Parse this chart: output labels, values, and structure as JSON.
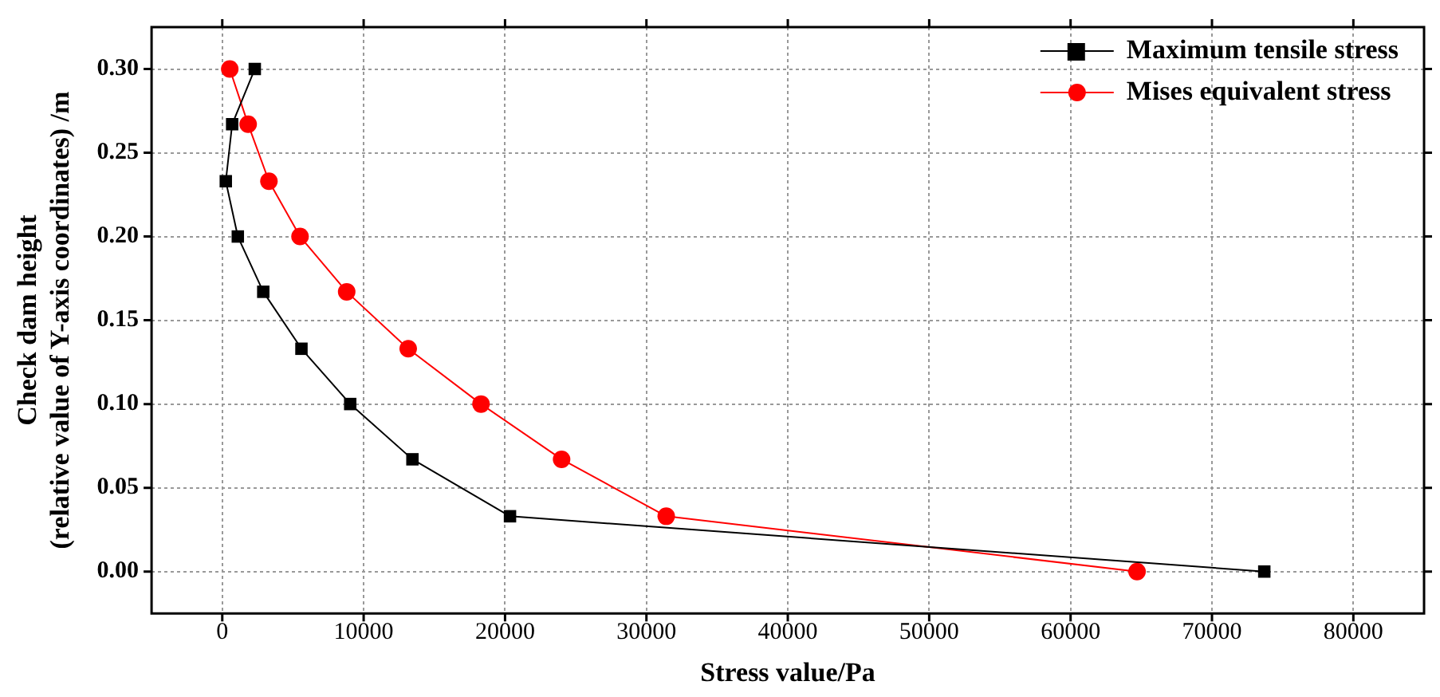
{
  "chart_data": {
    "type": "line",
    "xlabel": "Stress value/Pa",
    "ylabel": "Check dam height\n(relative value of Y-axis coordinates) /m",
    "xlim": [
      -5000,
      85000
    ],
    "xticks": [
      0,
      10000,
      20000,
      30000,
      40000,
      50000,
      60000,
      70000,
      80000
    ],
    "ylim": [
      -0.025,
      0.325
    ],
    "yticks": [
      {
        "value": 0,
        "label": "0.00"
      },
      0.05,
      {
        "value": 0.1,
        "label": "0.10"
      },
      0.15,
      {
        "value": 0.2,
        "label": "0.20"
      },
      0.25,
      {
        "value": 0.3,
        "label": "0.30"
      }
    ],
    "grid": true,
    "legend": "top right",
    "line_style": "solid",
    "series": [
      {
        "name": "Maximum tensile stress",
        "color": "#000000",
        "marker": "square",
        "x": [
          2300,
          700,
          250,
          1100,
          2900,
          5600,
          9050,
          13450,
          20350,
          73700
        ],
        "values": [
          0.3,
          0.267,
          0.233,
          0.2,
          0.167,
          0.133,
          0.1,
          0.067,
          0.033,
          0
        ]
      },
      {
        "name": "Mises equivalent stress",
        "color": "#ff0000",
        "marker": "circle",
        "x": [
          530,
          1830,
          3300,
          5500,
          8800,
          13150,
          18300,
          24000,
          31400,
          64700
        ],
        "values": [
          0.3,
          0.267,
          0.233,
          0.2,
          0.167,
          0.133,
          0.1,
          0.067,
          0.033,
          0
        ]
      }
    ]
  }
}
